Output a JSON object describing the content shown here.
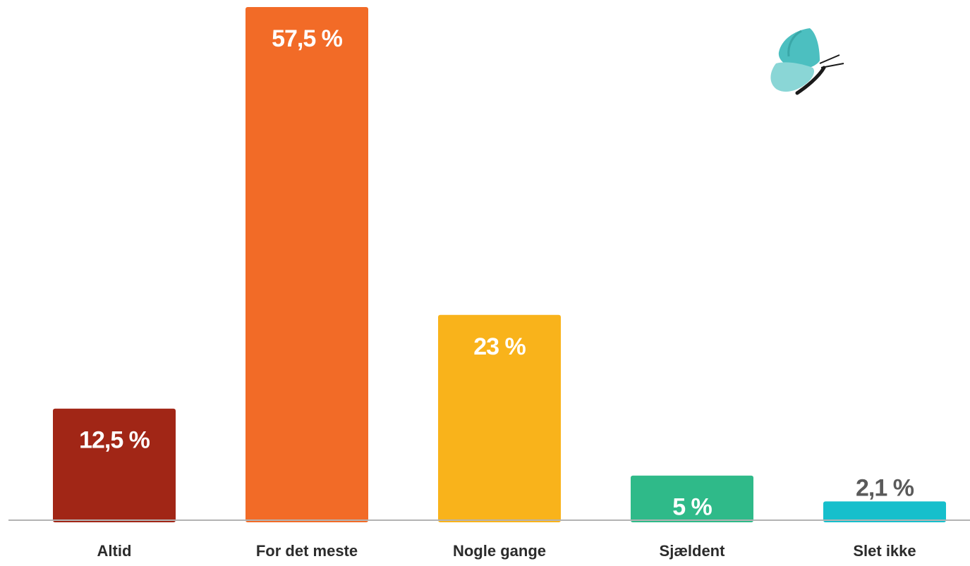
{
  "chart_data": {
    "type": "bar",
    "categories": [
      "Altid",
      "For det meste",
      "Nogle gange",
      "Sjældent",
      "Slet ikke"
    ],
    "values": [
      12.5,
      57.5,
      23,
      5,
      2.1
    ],
    "value_labels": [
      "12,5 %",
      "57,5 %",
      "23 %",
      "5 %",
      "2,1 %"
    ],
    "colors": [
      "#a12616",
      "#f26b27",
      "#f9b31b",
      "#2fba89",
      "#16bfcc"
    ],
    "label_colors": [
      "#ffffff",
      "#ffffff",
      "#ffffff",
      "#ffffff",
      "#5a5a5a"
    ],
    "ylim": [
      0,
      57.5
    ],
    "grid": false,
    "legend": "none",
    "decoration": "butterfly-icon"
  }
}
